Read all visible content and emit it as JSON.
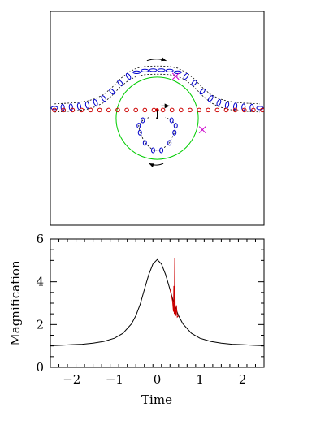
{
  "chart_data": [
    {
      "type": "scatter",
      "panel": "lens-plane",
      "title": "",
      "xlabel": "",
      "ylabel": "",
      "xlim": [
        -2.6,
        2.6
      ],
      "ylim": [
        -2.6,
        2.6
      ],
      "grid": false,
      "einstein_ring": {
        "center": [
          0,
          0
        ],
        "radius": 1.0,
        "color": "#00cc00"
      },
      "lens": {
        "x": 0,
        "y": 0.2,
        "color": "#cc0000"
      },
      "source_track": {
        "y": 0.2,
        "x": [
          -2.5,
          -2.28,
          -2.06,
          -1.84,
          -1.62,
          -1.4,
          -1.18,
          -0.96,
          -0.74,
          -0.52,
          -0.3,
          -0.08,
          0.14,
          0.36,
          0.58,
          0.8,
          1.02,
          1.24,
          1.46,
          1.68,
          1.9,
          2.12,
          2.34,
          2.56
        ],
        "color": "#cc0000"
      },
      "direction_arrow": {
        "from": [
          0.1,
          0.3
        ],
        "to": [
          0.3,
          0.3
        ]
      },
      "planet_marks": {
        "color": "#cc00cc",
        "points": [
          [
            0.45,
            1.02
          ],
          [
            1.1,
            -0.28
          ]
        ]
      },
      "outer_image_track": {
        "color": "#0000cc",
        "x": [
          -2.5,
          -2.3,
          -2.1,
          -1.9,
          -1.7,
          -1.5,
          -1.3,
          -1.1,
          -0.9,
          -0.7,
          -0.5,
          -0.3,
          -0.1,
          0.1,
          0.3,
          0.5,
          0.7,
          0.9,
          1.1,
          1.3,
          1.5,
          1.7,
          1.9,
          2.1,
          2.3,
          2.5
        ],
        "y": [
          0.25,
          0.26,
          0.27,
          0.29,
          0.32,
          0.38,
          0.48,
          0.65,
          0.86,
          1.02,
          1.12,
          1.16,
          1.17,
          1.17,
          1.16,
          1.12,
          1.02,
          0.86,
          0.65,
          0.48,
          0.38,
          0.32,
          0.29,
          0.27,
          0.26,
          0.25
        ]
      },
      "inner_image_track": {
        "color": "#0000cc",
        "x": [
          -0.2,
          -0.35,
          -0.45,
          -0.42,
          -0.3,
          -0.1,
          0.1,
          0.3,
          0.42,
          0.45,
          0.35,
          0.2
        ],
        "y": [
          0.02,
          -0.05,
          -0.18,
          -0.35,
          -0.6,
          -0.78,
          -0.78,
          -0.6,
          -0.35,
          -0.18,
          -0.05,
          0.02
        ]
      },
      "motion_arrows": [
        {
          "from": [
            -0.25,
            1.4
          ],
          "to": [
            0.22,
            1.4
          ]
        },
        {
          "from": [
            0.15,
            -1.1
          ],
          "to": [
            -0.2,
            -1.1
          ]
        }
      ]
    },
    {
      "type": "line",
      "panel": "light-curve",
      "title": "",
      "xlabel": "Time",
      "ylabel": "Magnification",
      "xlim": [
        -2.5,
        2.5
      ],
      "ylim": [
        0,
        6
      ],
      "xticks": [
        -2,
        -1,
        0,
        1,
        2
      ],
      "xtick_labels": [
        "−2",
        "−1",
        "0",
        "1",
        "2"
      ],
      "yticks": [
        0,
        2,
        4,
        6
      ],
      "ytick_labels": [
        "0",
        "2",
        "4",
        "6"
      ],
      "grid": false,
      "series": [
        {
          "color": "#000000",
          "x": [
            -2.5,
            -2.25,
            -2.0,
            -1.75,
            -1.5,
            -1.25,
            -1.0,
            -0.8,
            -0.6,
            -0.5,
            -0.4,
            -0.3,
            -0.2,
            -0.1,
            0.0,
            0.1,
            0.2,
            0.3,
            0.4,
            0.5,
            0.6,
            0.8,
            1.0,
            1.25,
            1.5,
            1.75,
            2.0,
            2.25,
            2.5
          ],
          "values": [
            1.01,
            1.03,
            1.06,
            1.08,
            1.13,
            1.21,
            1.36,
            1.59,
            2.03,
            2.41,
            2.94,
            3.63,
            4.32,
            4.83,
            5.04,
            4.83,
            4.32,
            3.63,
            2.94,
            2.41,
            2.03,
            1.59,
            1.36,
            1.21,
            1.13,
            1.08,
            1.06,
            1.03,
            1.01
          ]
        },
        {
          "color": "#cc0000",
          "x": [
            0.3,
            0.33,
            0.36,
            0.38,
            0.39,
            0.4,
            0.41,
            0.42,
            0.43,
            0.44,
            0.45,
            0.47,
            0.5
          ],
          "values": [
            3.63,
            3.38,
            3.1,
            2.6,
            3.8,
            2.5,
            5.1,
            2.9,
            2.4,
            2.5,
            2.9,
            2.35,
            2.41
          ]
        }
      ]
    }
  ]
}
